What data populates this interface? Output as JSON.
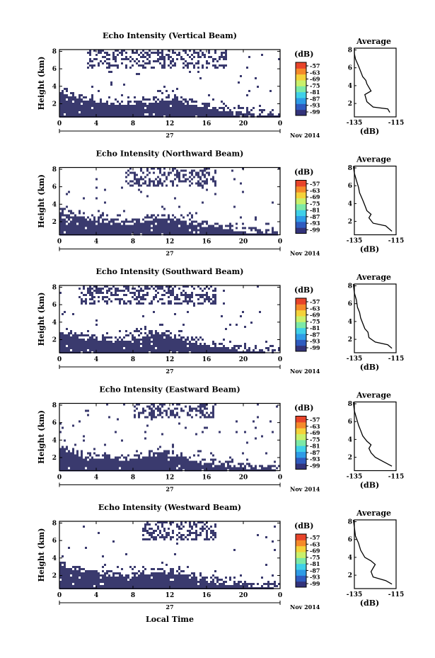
{
  "figure": {
    "x_label": "Local Time",
    "date_day": "27",
    "date_month_year": "Nov 2014",
    "colorbar_unit": "(dB)",
    "colorbar_ticks": [
      "-57",
      "-63",
      "-69",
      "-75",
      "-81",
      "-87",
      "-93",
      "-99"
    ],
    "colorbar_colors": [
      "#33337a",
      "#2f5bbf",
      "#2e9be6",
      "#3fd0e8",
      "#7ce9a6",
      "#c9f06b",
      "#f4d23a",
      "#f58a2a",
      "#e8442a"
    ],
    "no_data_color": "#ffffff",
    "intensity_color": "#3a3a6e",
    "avg_title": "Average",
    "avg_unit": "(dB)"
  },
  "chart_data": [
    {
      "type": "heatmap",
      "title": "Echo Intensity (Vertical Beam)",
      "ylabel": "Height (km)",
      "x_ticks": [
        "0",
        "4",
        "8",
        "12",
        "16",
        "20",
        "0"
      ],
      "y_ticks": [
        "2",
        "4",
        "6",
        "8"
      ],
      "xlim": [
        0,
        24
      ],
      "ylim": [
        0.5,
        8.2
      ],
      "low_layer_top_km": [
        3.9,
        3.3,
        3.0,
        2.8,
        2.6,
        2.5,
        2.4,
        2.3,
        2.3,
        2.4,
        2.6,
        2.8,
        2.9,
        2.8,
        2.5,
        2.2,
        2.0,
        1.8,
        1.6,
        1.5,
        1.4,
        1.3,
        1.2,
        1.15,
        1.1
      ],
      "upper_cloud_hours": [
        3,
        18
      ],
      "upper_cloud_km": [
        6.0,
        8.1
      ],
      "avg_xlim": [
        -135,
        -115
      ],
      "avg_x_ticks": [
        "-135",
        "-115"
      ],
      "avg_y_ticks": [
        "2",
        "4",
        "6",
        "8"
      ],
      "avg_profile": [
        [
          -118,
          1.0
        ],
        [
          -119,
          1.4
        ],
        [
          -126,
          1.6
        ],
        [
          -129,
          2.2
        ],
        [
          -130,
          3.0
        ],
        [
          -127,
          3.4
        ],
        [
          -128,
          3.8
        ],
        [
          -129,
          4.2
        ],
        [
          -129.5,
          4.6
        ],
        [
          -131,
          5.0
        ],
        [
          -132,
          5.6
        ],
        [
          -133,
          6.2
        ],
        [
          -134.5,
          7.0
        ],
        [
          -135,
          7.6
        ],
        [
          -135,
          8.2
        ]
      ]
    },
    {
      "type": "heatmap",
      "title": "Echo Intensity (Northward Beam)",
      "ylabel": "Height (km)",
      "x_ticks": [
        "0",
        "4",
        "8",
        "12",
        "16",
        "20",
        "0"
      ],
      "y_ticks": [
        "2",
        "4",
        "6",
        "8"
      ],
      "xlim": [
        0,
        24
      ],
      "ylim": [
        0.5,
        8.2
      ],
      "low_layer_top_km": [
        3.6,
        3.2,
        2.9,
        2.7,
        2.5,
        2.3,
        2.2,
        2.1,
        2.2,
        2.4,
        2.7,
        2.9,
        2.8,
        2.6,
        2.4,
        2.1,
        1.9,
        1.7,
        1.5,
        1.4,
        1.3,
        1.2,
        1.1,
        1.05,
        1.0
      ],
      "upper_cloud_hours": [
        7,
        17
      ],
      "upper_cloud_km": [
        6.0,
        8.1
      ],
      "avg_xlim": [
        -135,
        -115
      ],
      "avg_x_ticks": [
        "-135",
        "-115"
      ],
      "avg_y_ticks": [
        "2",
        "4",
        "6",
        "8"
      ],
      "avg_profile": [
        [
          -117,
          0.9
        ],
        [
          -120,
          1.5
        ],
        [
          -126,
          1.8
        ],
        [
          -128,
          2.4
        ],
        [
          -127,
          2.8
        ],
        [
          -129,
          3.2
        ],
        [
          -130,
          3.8
        ],
        [
          -131,
          4.4
        ],
        [
          -132.5,
          5.2
        ],
        [
          -133,
          5.8
        ],
        [
          -134,
          6.6
        ],
        [
          -135,
          7.4
        ],
        [
          -135.5,
          8.2
        ]
      ]
    },
    {
      "type": "heatmap",
      "title": "Echo Intensity (Southward Beam)",
      "ylabel": "Height (km)",
      "x_ticks": [
        "0",
        "4",
        "8",
        "12",
        "16",
        "20",
        "0"
      ],
      "y_ticks": [
        "2",
        "4",
        "6",
        "8"
      ],
      "xlim": [
        0,
        24
      ],
      "ylim": [
        0.5,
        8.2
      ],
      "low_layer_top_km": [
        3.4,
        3.0,
        2.7,
        2.6,
        2.5,
        2.4,
        2.3,
        2.4,
        2.5,
        2.8,
        3.0,
        3.1,
        2.9,
        2.6,
        2.3,
        2.0,
        1.8,
        1.6,
        1.4,
        1.3,
        1.2,
        1.1,
        1.05,
        1.0,
        1.0
      ],
      "upper_cloud_hours": [
        2,
        17
      ],
      "upper_cloud_km": [
        6.0,
        8.1
      ],
      "avg_xlim": [
        -135,
        -115
      ],
      "avg_x_ticks": [
        "-135",
        "-115"
      ],
      "avg_y_ticks": [
        "2",
        "4",
        "6",
        "8"
      ],
      "avg_profile": [
        [
          -117,
          1.0
        ],
        [
          -119,
          1.4
        ],
        [
          -125,
          1.7
        ],
        [
          -128,
          2.2
        ],
        [
          -128.5,
          2.8
        ],
        [
          -130,
          3.2
        ],
        [
          -131,
          3.8
        ],
        [
          -132,
          4.4
        ],
        [
          -132.5,
          5.0
        ],
        [
          -133.5,
          5.6
        ],
        [
          -134,
          6.4
        ],
        [
          -135,
          7.2
        ],
        [
          -135.5,
          8.2
        ]
      ]
    },
    {
      "type": "heatmap",
      "title": "Echo Intensity (Eastward Beam)",
      "ylabel": "Height (km)",
      "x_ticks": [
        "0",
        "4",
        "8",
        "12",
        "16",
        "20",
        "0"
      ],
      "y_ticks": [
        "2",
        "4",
        "6",
        "8"
      ],
      "xlim": [
        0,
        24
      ],
      "ylim": [
        0.5,
        8.2
      ],
      "low_layer_top_km": [
        3.5,
        3.0,
        2.7,
        2.5,
        2.4,
        2.3,
        2.3,
        2.2,
        2.3,
        2.5,
        2.7,
        2.8,
        2.7,
        2.5,
        2.3,
        2.1,
        1.9,
        1.7,
        1.5,
        1.4,
        1.3,
        1.2,
        1.1,
        1.05,
        1.0
      ],
      "upper_cloud_hours": [
        8,
        17
      ],
      "upper_cloud_km": [
        6.5,
        8.1
      ],
      "avg_xlim": [
        -135,
        -115
      ],
      "avg_x_ticks": [
        "-135",
        "-115"
      ],
      "avg_y_ticks": [
        "2",
        "4",
        "6",
        "8"
      ],
      "avg_profile": [
        [
          -117,
          1.0
        ],
        [
          -121,
          1.5
        ],
        [
          -125,
          2.0
        ],
        [
          -127,
          2.5
        ],
        [
          -128,
          3.0
        ],
        [
          -127,
          3.4
        ],
        [
          -129,
          3.8
        ],
        [
          -131,
          4.4
        ],
        [
          -132,
          5.0
        ],
        [
          -133,
          5.6
        ],
        [
          -134,
          6.4
        ],
        [
          -135,
          7.2
        ],
        [
          -135.5,
          8.2
        ]
      ]
    },
    {
      "type": "heatmap",
      "title": "Echo Intensity (Westward Beam)",
      "ylabel": "Height (km)",
      "x_ticks": [
        "0",
        "4",
        "8",
        "12",
        "16",
        "20",
        "0"
      ],
      "y_ticks": [
        "2",
        "4",
        "6",
        "8"
      ],
      "xlim": [
        0,
        24
      ],
      "ylim": [
        0.5,
        8.2
      ],
      "low_layer_top_km": [
        3.7,
        3.2,
        2.9,
        2.7,
        2.6,
        2.5,
        2.4,
        2.3,
        2.4,
        2.6,
        2.8,
        2.9,
        2.8,
        2.6,
        2.4,
        2.1,
        1.9,
        1.7,
        1.5,
        1.4,
        1.3,
        1.2,
        1.1,
        1.05,
        1.0
      ],
      "upper_cloud_hours": [
        9,
        17
      ],
      "upper_cloud_km": [
        6.0,
        8.1
      ],
      "avg_xlim": [
        -135,
        -115
      ],
      "avg_x_ticks": [
        "-135",
        "-115"
      ],
      "avg_y_ticks": [
        "2",
        "4",
        "6",
        "8"
      ],
      "avg_profile": [
        [
          -117,
          1.0
        ],
        [
          -120,
          1.4
        ],
        [
          -126,
          1.8
        ],
        [
          -127,
          2.4
        ],
        [
          -126,
          2.8
        ],
        [
          -125,
          3.2
        ],
        [
          -127,
          3.6
        ],
        [
          -130,
          4.0
        ],
        [
          -132,
          4.8
        ],
        [
          -133,
          5.6
        ],
        [
          -134.5,
          6.4
        ],
        [
          -135,
          7.4
        ],
        [
          -135.5,
          8.2
        ]
      ]
    }
  ]
}
